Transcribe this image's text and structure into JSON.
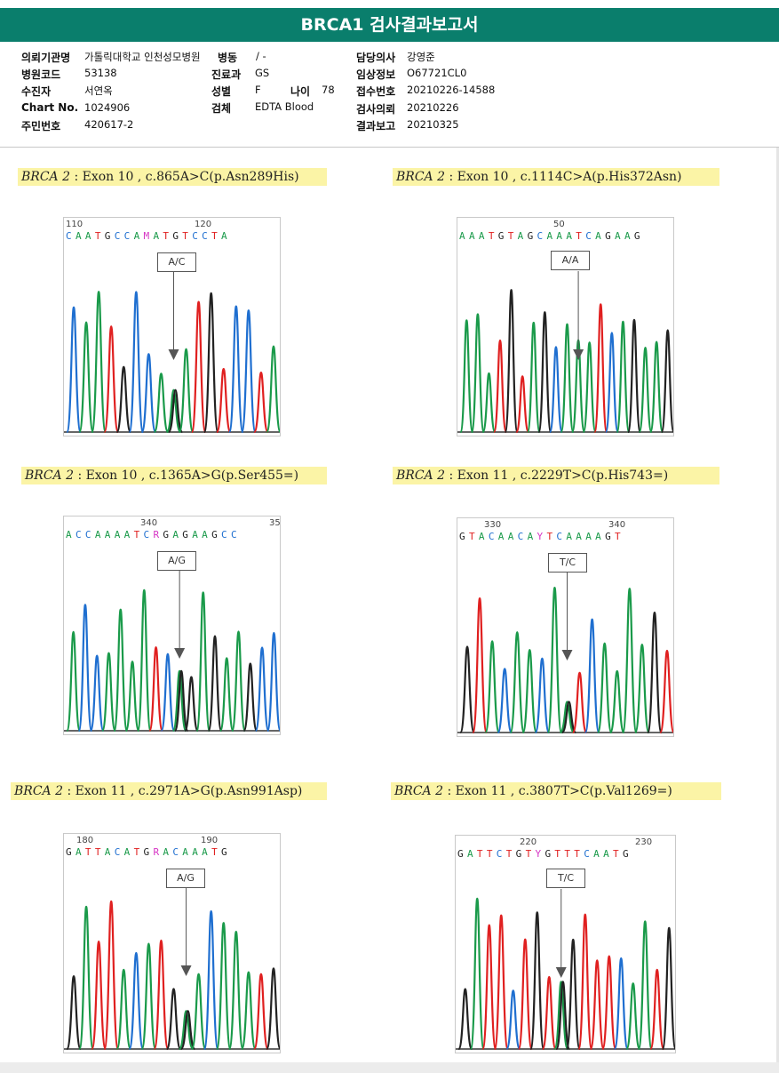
{
  "header": {
    "title": "BRCA1 검사결과보고서"
  },
  "patient": {
    "institution_label": "의뢰기관명",
    "institution": "가톨릭대학교 인천성모병원",
    "ward_label": "병동",
    "ward": "/ -",
    "physician_label": "담당의사",
    "physician": "강영준",
    "hospital_code_label": "병원코드",
    "hospital_code": "53138",
    "department_label": "진료과",
    "department": "GS",
    "clinical_info_label": "임상정보",
    "clinical_info": "O67721CL0",
    "examinee_label": "수진자",
    "examinee": "서연옥",
    "sex_label": "성별",
    "sex": "F",
    "age_label": "나이",
    "age": "78",
    "reception_label": "접수번호",
    "reception": "20210226-14588",
    "chart_label": "Chart No.",
    "chart": "1024906",
    "specimen_label": "검체",
    "specimen": "EDTA Blood",
    "request_label": "검사의뢰",
    "request": "20210226",
    "idnum_label": "주민번호",
    "idnum": "420617-2",
    "report_label": "결과보고",
    "report": "20210325"
  },
  "colors": {
    "A": "#1a9a4a",
    "C": "#1f6fd0",
    "G": "#222222",
    "T": "#e02020",
    "ambiguous": "#d633c4",
    "header": "#0a7e6c",
    "highlight": "#fbf4a6"
  },
  "panels": [
    {
      "gene": "BRCA 2",
      "detail": " : Exon 10 , c.865A>C(p.Asn289His)",
      "pos1": "110",
      "pos2": "120",
      "seq": "CAATGCCAMATGTCCTA",
      "call": "A/C",
      "mark": 8
    },
    {
      "gene": "BRCA 2",
      "detail": " : Exon 10 , c.1114C>A(p.His372Asn)",
      "pos1": "50",
      "pos2": "",
      "seq": "AAATGTAGCAAATCAGAAG",
      "call": "A/A",
      "mark": 10
    },
    {
      "gene": "BRCA 2",
      "detail": " : Exon 10 , c.1365A>G(p.Ser455=)",
      "pos1": "340",
      "pos2": "35",
      "seq": "ACCAAAATCRGAGAAGCC",
      "call": "A/G",
      "mark": 9
    },
    {
      "gene": "BRCA 2",
      "detail": " : Exon 11 , c.2229T>C(p.His743=)",
      "pos1": "330",
      "pos2": "340",
      "seq": "GTACAACAYTCAAAAGT",
      "call": "T/C",
      "mark": 8
    },
    {
      "gene": "BRCA 2",
      "detail": " : Exon 11 , c.2971A>G(p.Asn991Asp)",
      "pos1": "180",
      "pos2": "190",
      "seq": "GATTACATGRACAAATG",
      "call": "A/G",
      "mark": 9
    },
    {
      "gene": "BRCA 2",
      "detail": " : Exon 11 , c.3807T>C(p.Val1269=)",
      "pos1": "220",
      "pos2": "230",
      "seq": "GATTCTGTYGTTTCAATG",
      "call": "T/C",
      "mark": 8
    }
  ]
}
